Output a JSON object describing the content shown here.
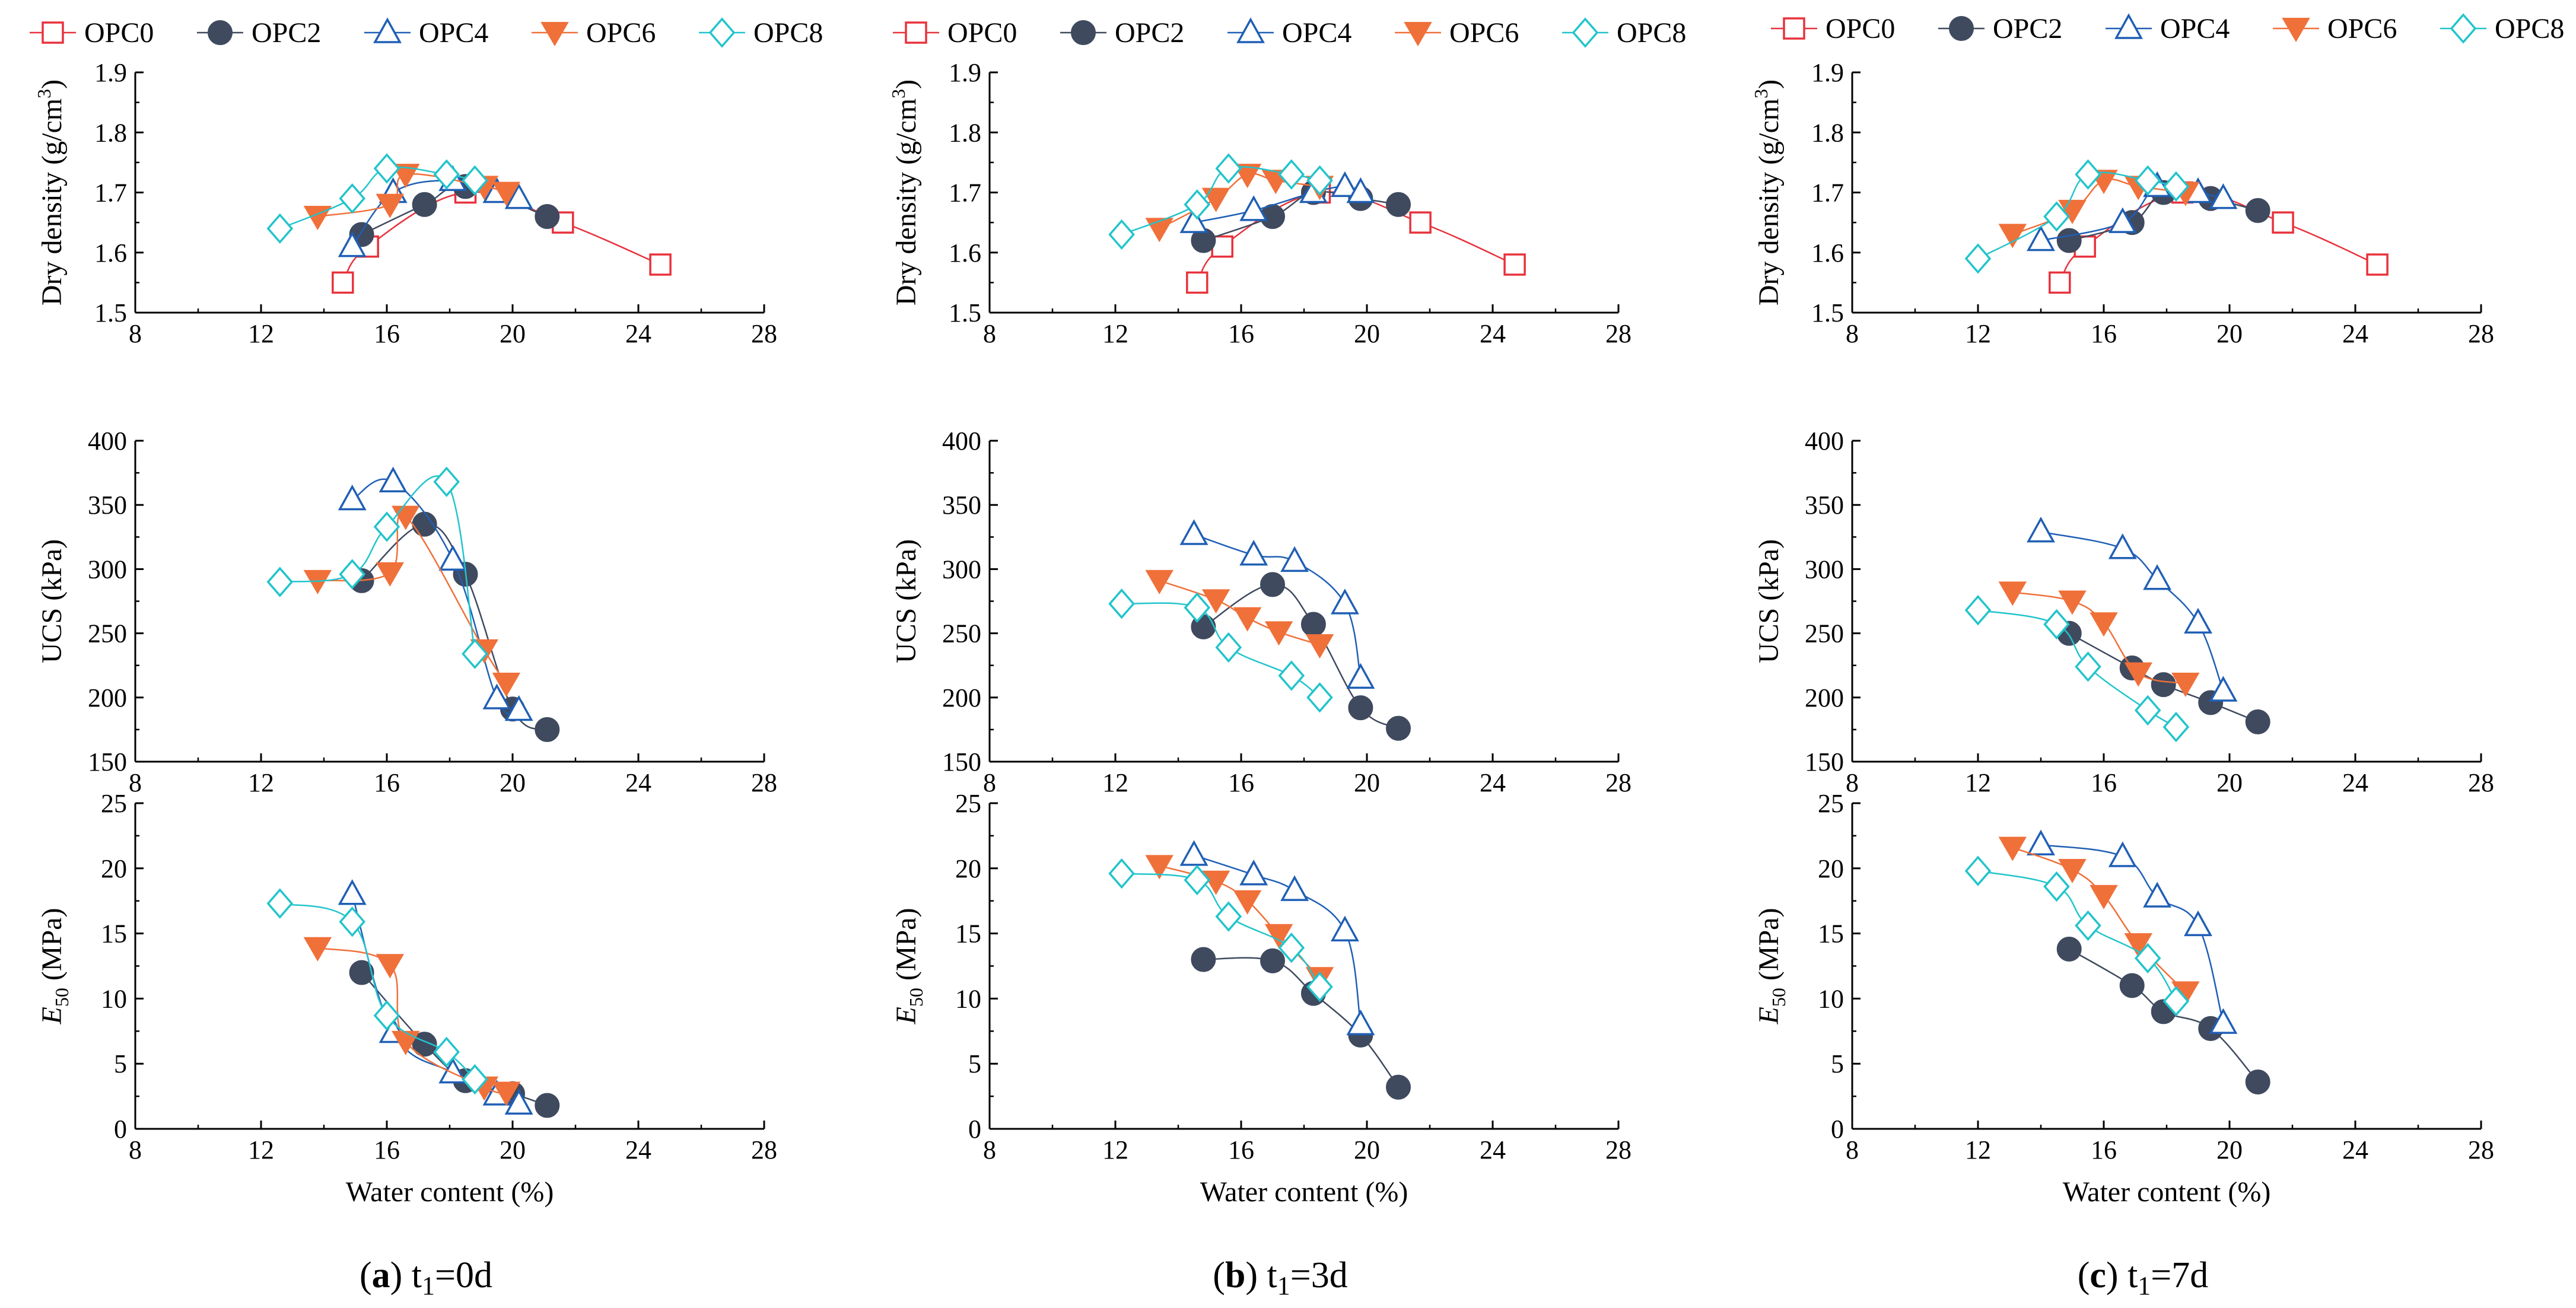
{
  "figure": {
    "captions": [
      {
        "letter": "a",
        "label": "t",
        "sub": "1",
        "rest": "=0d"
      },
      {
        "letter": "b",
        "label": "t",
        "sub": "1",
        "rest": "=3d"
      },
      {
        "letter": "c",
        "label": "t",
        "sub": "1",
        "rest": "=7d"
      }
    ],
    "xlabel": "Water content (%)",
    "ylabels": {
      "density": {
        "main": "Dry density (g/cm",
        "sup": "3",
        "tail": ")"
      },
      "ucs": {
        "main": "UCS (kPa)"
      },
      "e50": {
        "italic": "E",
        "sub": "50",
        "tail": " (MPa)"
      }
    },
    "xticks": [
      "8",
      "12",
      "16",
      "20",
      "24",
      "28"
    ],
    "yticks": {
      "density": [
        "1.5",
        "1.6",
        "1.7",
        "1.8",
        "1.9"
      ],
      "ucs": [
        "150",
        "200",
        "250",
        "300",
        "350",
        "400"
      ],
      "e50": [
        "0",
        "5",
        "10",
        "15",
        "20",
        "25"
      ]
    }
  },
  "legend": [
    {
      "name": "OPC0",
      "color": "#e8323c",
      "marker": "square"
    },
    {
      "name": "OPC2",
      "color": "#3f4a5f",
      "marker": "circle"
    },
    {
      "name": "OPC4",
      "color": "#1f5fb5",
      "marker": "triangle"
    },
    {
      "name": "OPC6",
      "color": "#f0703a",
      "marker": "triangle-down"
    },
    {
      "name": "OPC8",
      "color": "#22c4cc",
      "marker": "diamond"
    }
  ],
  "chart_data": [
    {
      "type": "line",
      "title": "(a) t1=0d",
      "ylabel": "Dry density (g/cm3)",
      "xlabel": "",
      "xlim": [
        8,
        28
      ],
      "ylim": [
        1.5,
        1.9
      ],
      "series": [
        {
          "name": "OPC0",
          "x": [
            14.6,
            15.4,
            18.5,
            21.6,
            24.7
          ],
          "y": [
            1.55,
            1.61,
            1.7,
            1.65,
            1.58
          ]
        },
        {
          "name": "OPC2",
          "x": [
            15.2,
            17.2,
            18.5,
            21.1
          ],
          "y": [
            1.63,
            1.68,
            1.71,
            1.66
          ]
        },
        {
          "name": "OPC4",
          "x": [
            14.9,
            16.2,
            18.1,
            19.5,
            20.2
          ],
          "y": [
            1.61,
            1.7,
            1.72,
            1.7,
            1.69
          ]
        },
        {
          "name": "OPC6",
          "x": [
            13.8,
            16.1,
            16.6,
            19.1,
            19.8
          ],
          "y": [
            1.66,
            1.68,
            1.73,
            1.71,
            1.7
          ]
        },
        {
          "name": "OPC8",
          "x": [
            12.6,
            14.9,
            16.0,
            17.9,
            18.8
          ],
          "y": [
            1.64,
            1.69,
            1.74,
            1.73,
            1.72
          ]
        }
      ]
    },
    {
      "type": "line",
      "title": "(a) t1=0d",
      "ylabel": "UCS (kPa)",
      "xlabel": "",
      "xlim": [
        8,
        28
      ],
      "ylim": [
        150,
        400
      ],
      "series": [
        {
          "name": "OPC2",
          "x": [
            15.2,
            17.2,
            18.5,
            20.0,
            21.1
          ],
          "y": [
            291,
            335,
            296,
            191,
            175
          ]
        },
        {
          "name": "OPC4",
          "x": [
            14.9,
            16.2,
            18.1,
            19.5,
            20.2
          ],
          "y": [
            354,
            368,
            307,
            199,
            190
          ]
        },
        {
          "name": "OPC6",
          "x": [
            13.8,
            16.1,
            16.6,
            19.1,
            19.8
          ],
          "y": [
            291,
            297,
            341,
            237,
            211
          ]
        },
        {
          "name": "OPC8",
          "x": [
            12.6,
            14.9,
            16.0,
            17.9,
            18.8
          ],
          "y": [
            290,
            296,
            333,
            368,
            234
          ]
        }
      ]
    },
    {
      "type": "line",
      "title": "(a) t1=0d",
      "ylabel": "E50 (MPa)",
      "xlabel": "Water content (%)",
      "xlim": [
        8,
        28
      ],
      "ylim": [
        0,
        25
      ],
      "series": [
        {
          "name": "OPC2",
          "x": [
            15.2,
            17.2,
            18.5,
            20.0,
            21.1
          ],
          "y": [
            12.0,
            6.5,
            3.7,
            2.7,
            1.8
          ]
        },
        {
          "name": "OPC4",
          "x": [
            14.9,
            16.2,
            18.1,
            19.5,
            20.2
          ],
          "y": [
            18.0,
            7.4,
            4.3,
            2.6,
            1.9
          ]
        },
        {
          "name": "OPC6",
          "x": [
            13.8,
            16.1,
            16.6,
            19.1,
            19.8
          ],
          "y": [
            13.9,
            12.6,
            6.7,
            3.2,
            2.8
          ]
        },
        {
          "name": "OPC8",
          "x": [
            12.6,
            14.9,
            16.0,
            17.9,
            18.8
          ],
          "y": [
            17.3,
            15.9,
            8.7,
            5.9,
            3.8
          ]
        }
      ]
    },
    {
      "type": "line",
      "title": "(b) t1=3d",
      "ylabel": "Dry density (g/cm3)",
      "xlabel": "",
      "xlim": [
        8,
        28
      ],
      "ylim": [
        1.5,
        1.9
      ],
      "series": [
        {
          "name": "OPC0",
          "x": [
            14.6,
            15.4,
            18.5,
            21.7,
            24.7
          ],
          "y": [
            1.55,
            1.61,
            1.7,
            1.65,
            1.58
          ]
        },
        {
          "name": "OPC2",
          "x": [
            14.8,
            17.0,
            18.3,
            19.8,
            21.0
          ],
          "y": [
            1.62,
            1.66,
            1.7,
            1.69,
            1.68
          ]
        },
        {
          "name": "OPC4",
          "x": [
            14.5,
            16.4,
            18.3,
            19.3,
            19.8
          ],
          "y": [
            1.65,
            1.67,
            1.7,
            1.71,
            1.7
          ]
        },
        {
          "name": "OPC6",
          "x": [
            13.4,
            15.2,
            16.2,
            17.1,
            18.5
          ],
          "y": [
            1.64,
            1.69,
            1.73,
            1.72,
            1.71
          ]
        },
        {
          "name": "OPC8",
          "x": [
            12.2,
            14.6,
            15.6,
            17.6,
            18.5
          ],
          "y": [
            1.63,
            1.68,
            1.74,
            1.73,
            1.72
          ]
        }
      ]
    },
    {
      "type": "line",
      "title": "(b) t1=3d",
      "ylabel": "UCS (kPa)",
      "xlabel": "",
      "xlim": [
        8,
        28
      ],
      "ylim": [
        150,
        400
      ],
      "series": [
        {
          "name": "OPC2",
          "x": [
            14.8,
            17.0,
            18.3,
            19.8,
            21.0
          ],
          "y": [
            255,
            288,
            257,
            192,
            176
          ]
        },
        {
          "name": "OPC4",
          "x": [
            14.5,
            16.4,
            17.7,
            19.3,
            19.8
          ],
          "y": [
            327,
            311,
            306,
            273,
            215
          ]
        },
        {
          "name": "OPC6",
          "x": [
            13.4,
            15.2,
            16.2,
            17.2,
            18.5
          ],
          "y": [
            291,
            276,
            262,
            251,
            241
          ]
        },
        {
          "name": "OPC8",
          "x": [
            12.2,
            14.6,
            15.6,
            17.6,
            18.5
          ],
          "y": [
            273,
            270,
            239,
            217,
            200
          ]
        }
      ]
    },
    {
      "type": "line",
      "title": "(b) t1=3d",
      "ylabel": "E50 (MPa)",
      "xlabel": "Water content (%)",
      "xlim": [
        8,
        28
      ],
      "ylim": [
        0,
        25
      ],
      "series": [
        {
          "name": "OPC2",
          "x": [
            14.8,
            17.0,
            18.3,
            19.8,
            21.0
          ],
          "y": [
            13.0,
            12.9,
            10.4,
            7.2,
            3.2
          ]
        },
        {
          "name": "OPC4",
          "x": [
            14.5,
            16.4,
            17.7,
            19.3,
            19.8
          ],
          "y": [
            21.0,
            19.5,
            18.3,
            15.2,
            8.0
          ]
        },
        {
          "name": "OPC6",
          "x": [
            13.4,
            15.2,
            16.2,
            17.2,
            18.5
          ],
          "y": [
            20.2,
            19.0,
            17.5,
            14.9,
            11.6
          ]
        },
        {
          "name": "OPC8",
          "x": [
            12.2,
            14.6,
            15.6,
            17.6,
            18.5
          ],
          "y": [
            19.6,
            19.1,
            16.3,
            13.9,
            10.9
          ]
        }
      ]
    },
    {
      "type": "line",
      "title": "(c) t1=7d",
      "ylabel": "Dry density (g/cm3)",
      "xlabel": "",
      "xlim": [
        8,
        28
      ],
      "ylim": [
        1.5,
        1.9
      ],
      "series": [
        {
          "name": "OPC0",
          "x": [
            14.6,
            15.4,
            18.5,
            21.7,
            24.7
          ],
          "y": [
            1.55,
            1.61,
            1.7,
            1.65,
            1.58
          ]
        },
        {
          "name": "OPC2",
          "x": [
            14.9,
            16.9,
            17.9,
            19.4,
            20.9
          ],
          "y": [
            1.62,
            1.65,
            1.7,
            1.69,
            1.67
          ]
        },
        {
          "name": "OPC4",
          "x": [
            14.0,
            16.6,
            17.7,
            19.0,
            19.8
          ],
          "y": [
            1.62,
            1.65,
            1.71,
            1.7,
            1.69
          ]
        },
        {
          "name": "OPC6",
          "x": [
            13.1,
            15.0,
            16.0,
            17.1,
            18.6
          ],
          "y": [
            1.63,
            1.67,
            1.72,
            1.71,
            1.7
          ]
        },
        {
          "name": "OPC8",
          "x": [
            12.0,
            14.5,
            15.5,
            17.4,
            18.3
          ],
          "y": [
            1.59,
            1.66,
            1.73,
            1.72,
            1.71
          ]
        }
      ]
    },
    {
      "type": "line",
      "title": "(c) t1=7d",
      "ylabel": "UCS (kPa)",
      "xlabel": "",
      "xlim": [
        8,
        28
      ],
      "ylim": [
        150,
        400
      ],
      "series": [
        {
          "name": "OPC2",
          "x": [
            14.9,
            16.9,
            17.9,
            19.4,
            20.9
          ],
          "y": [
            250,
            223,
            210,
            196,
            181
          ]
        },
        {
          "name": "OPC4",
          "x": [
            14.0,
            16.6,
            17.7,
            19.0,
            19.8
          ],
          "y": [
            329,
            316,
            292,
            258,
            205
          ]
        },
        {
          "name": "OPC6",
          "x": [
            13.1,
            15.0,
            16.0,
            17.1,
            18.6
          ],
          "y": [
            282,
            275,
            258,
            219,
            211
          ]
        },
        {
          "name": "OPC8",
          "x": [
            12.0,
            14.5,
            15.5,
            17.4,
            18.3
          ],
          "y": [
            268,
            257,
            224,
            190,
            177
          ]
        }
      ]
    },
    {
      "type": "line",
      "title": "(c) t1=7d",
      "ylabel": "E50 (MPa)",
      "xlabel": "Water content (%)",
      "xlim": [
        8,
        28
      ],
      "ylim": [
        0,
        25
      ],
      "series": [
        {
          "name": "OPC2",
          "x": [
            14.9,
            16.9,
            17.9,
            19.4,
            20.9
          ],
          "y": [
            13.8,
            11.0,
            9.0,
            7.7,
            3.6
          ]
        },
        {
          "name": "OPC4",
          "x": [
            14.0,
            16.6,
            17.7,
            19.0,
            19.8
          ],
          "y": [
            21.8,
            20.9,
            17.8,
            15.6,
            8.1
          ]
        },
        {
          "name": "OPC6",
          "x": [
            13.1,
            15.0,
            16.0,
            17.1,
            18.6
          ],
          "y": [
            21.6,
            19.9,
            17.9,
            14.2,
            10.5
          ]
        },
        {
          "name": "OPC8",
          "x": [
            12.0,
            14.5,
            15.5,
            17.4,
            18.3
          ],
          "y": [
            19.8,
            18.6,
            15.6,
            13.1,
            9.8
          ]
        }
      ]
    }
  ]
}
